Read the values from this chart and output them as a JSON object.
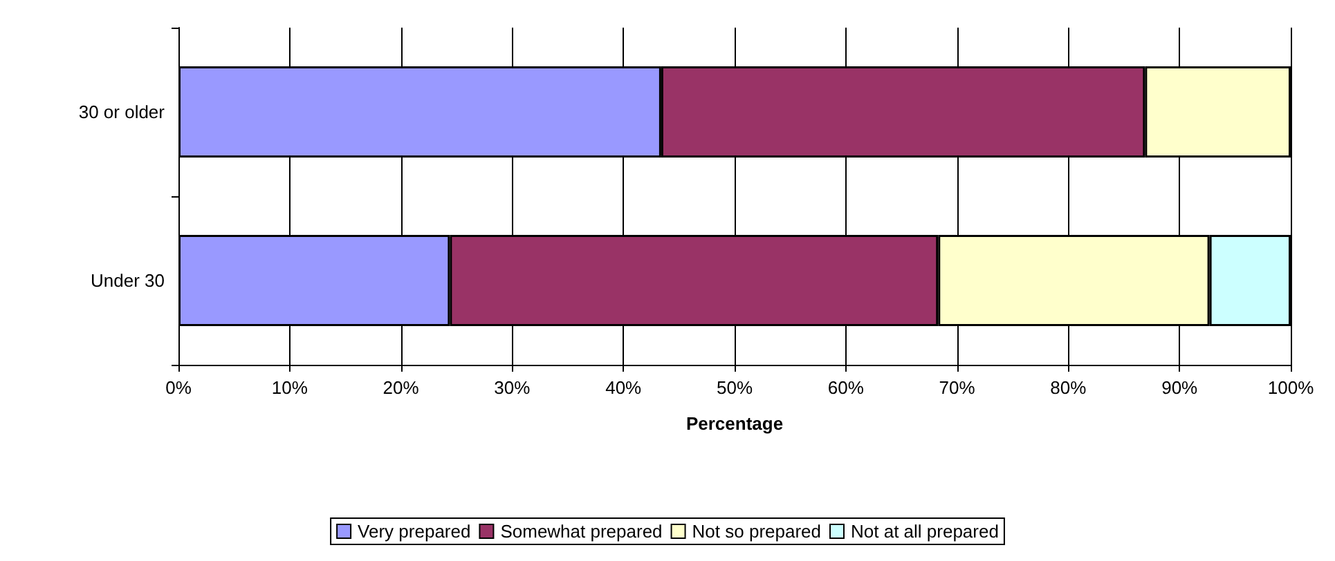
{
  "chart_data": {
    "type": "bar",
    "orientation": "horizontal",
    "stacked": true,
    "xlabel": "Percentage",
    "categories": [
      "30 or older",
      "Under 30"
    ],
    "series": [
      {
        "name": "Very prepared",
        "color": "#9999ff",
        "values": [
          43.4,
          24.4
        ]
      },
      {
        "name": "Somewhat prepared",
        "color": "#993366",
        "values": [
          43.5,
          43.9
        ]
      },
      {
        "name": "Not so prepared",
        "color": "#ffffcc",
        "values": [
          13.1,
          24.4
        ]
      },
      {
        "name": "Not at all prepared",
        "color": "#ccffff",
        "values": [
          null,
          7.3
        ]
      }
    ],
    "xlim": [
      0,
      100
    ],
    "xticks": [
      {
        "value": 0,
        "label": "0%"
      },
      {
        "value": 10,
        "label": "10%"
      },
      {
        "value": 20,
        "label": "20%"
      },
      {
        "value": 30,
        "label": "30%"
      },
      {
        "value": 40,
        "label": "40%"
      },
      {
        "value": 50,
        "label": "50%"
      },
      {
        "value": 60,
        "label": "60%"
      },
      {
        "value": 70,
        "label": "70%"
      },
      {
        "value": 80,
        "label": "80%"
      },
      {
        "value": 90,
        "label": "90%"
      },
      {
        "value": 100,
        "label": "100%"
      }
    ],
    "grid": "x",
    "legend": "bottom"
  }
}
